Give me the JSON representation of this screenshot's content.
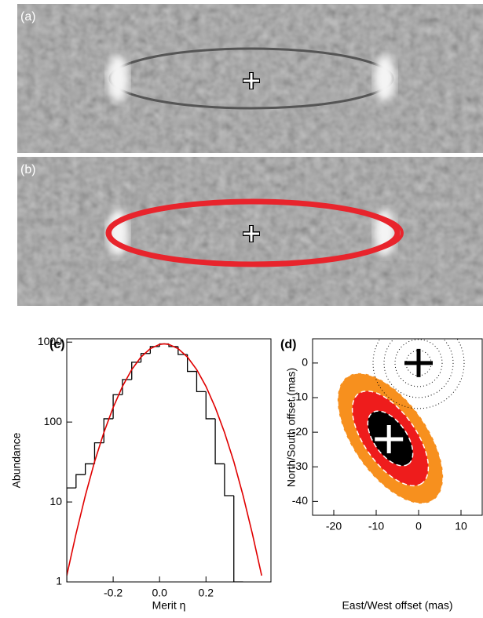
{
  "image_panels": [
    {
      "label": "(a)"
    },
    {
      "label": "(b)"
    }
  ],
  "chart_data": [
    {
      "type": "histogram",
      "panel_label": "(c)",
      "xlabel": "Merit η",
      "ylabel": "Abundance",
      "bins": [
        -0.4,
        -0.36,
        -0.32,
        -0.28,
        -0.24,
        -0.2,
        -0.16,
        -0.12,
        -0.08,
        -0.04,
        0.0,
        0.04,
        0.08,
        0.12,
        0.16,
        0.2,
        0.24,
        0.28,
        0.32,
        0.36
      ],
      "counts": [
        15,
        22,
        30,
        55,
        110,
        220,
        340,
        560,
        720,
        880,
        950,
        880,
        700,
        430,
        240,
        110,
        30,
        12,
        1
      ],
      "color": "#000000",
      "curve": {
        "color": "#e00000",
        "x": [
          -0.4,
          -0.36,
          -0.32,
          -0.28,
          -0.24,
          -0.2,
          -0.16,
          -0.12,
          -0.08,
          -0.04,
          0.0,
          0.02,
          0.04,
          0.08,
          0.12,
          0.16,
          0.2,
          0.24,
          0.28,
          0.32,
          0.36,
          0.4,
          0.44
        ],
        "values": [
          1.2,
          4.0,
          12,
          32,
          74,
          152,
          279,
          453,
          651,
          829,
          936,
          950,
          936,
          829,
          651,
          453,
          279,
          152,
          74,
          32,
          12,
          4.0,
          1.2
        ]
      },
      "xlim": [
        -0.4,
        0.48
      ],
      "xticks": [
        -0.2,
        {
          "value": 0,
          "label": "0.0"
        },
        0.2
      ],
      "ylim": [
        1,
        1100
      ],
      "yticks": [
        1,
        10,
        100,
        1000
      ],
      "log_y": true
    },
    {
      "type": "scatter",
      "panel_label": "(d)",
      "xlabel": "East/West offset (mas)",
      "ylabel": "North/South offset (mas)",
      "x": [
        0,
        -7
      ],
      "values": [
        0,
        -22
      ],
      "colors": [
        "#000000",
        "#ffffff"
      ],
      "xlim": [
        -25,
        15
      ],
      "xticks": [
        -20,
        -10,
        0,
        10
      ],
      "ylim": [
        -44,
        7
      ],
      "yticks": [
        0,
        -10,
        -20,
        -30,
        -40
      ]
    }
  ]
}
